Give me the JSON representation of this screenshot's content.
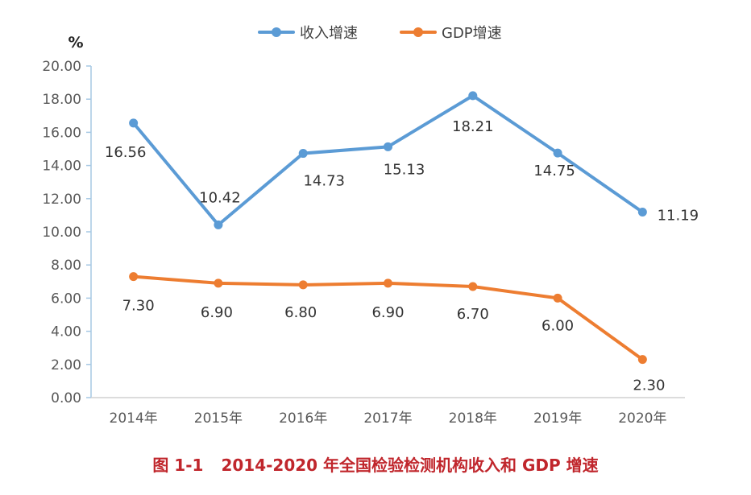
{
  "caption": {
    "number": "图 1-1",
    "text": "2014-2020 年全国检验检测机构收入和 GDP 增速"
  },
  "chart_data": {
    "type": "line",
    "ylabel": "%",
    "ylim": [
      0,
      20
    ],
    "yticks": [
      "0.00",
      "2.00",
      "4.00",
      "6.00",
      "8.00",
      "10.00",
      "12.00",
      "14.00",
      "16.00",
      "18.00",
      "20.00"
    ],
    "categories": [
      "2014年",
      "2015年",
      "2016年",
      "2017年",
      "2018年",
      "2019年",
      "2020年"
    ],
    "legend_position": "top-center",
    "grid": false,
    "series": [
      {
        "name": "收入增速",
        "color": "#5b9bd5",
        "values": [
          16.56,
          10.42,
          14.73,
          15.13,
          18.21,
          14.75,
          11.19
        ],
        "labels": [
          "16.56",
          "10.42",
          "14.73",
          "15.13",
          "18.21",
          "14.75",
          "11.19"
        ]
      },
      {
        "name": "GDP增速",
        "color": "#ed7d31",
        "values": [
          7.3,
          6.9,
          6.8,
          6.9,
          6.7,
          6.0,
          2.3
        ],
        "labels": [
          "7.30",
          "6.90",
          "6.80",
          "6.90",
          "6.70",
          "6.00",
          "2.30"
        ]
      }
    ]
  }
}
